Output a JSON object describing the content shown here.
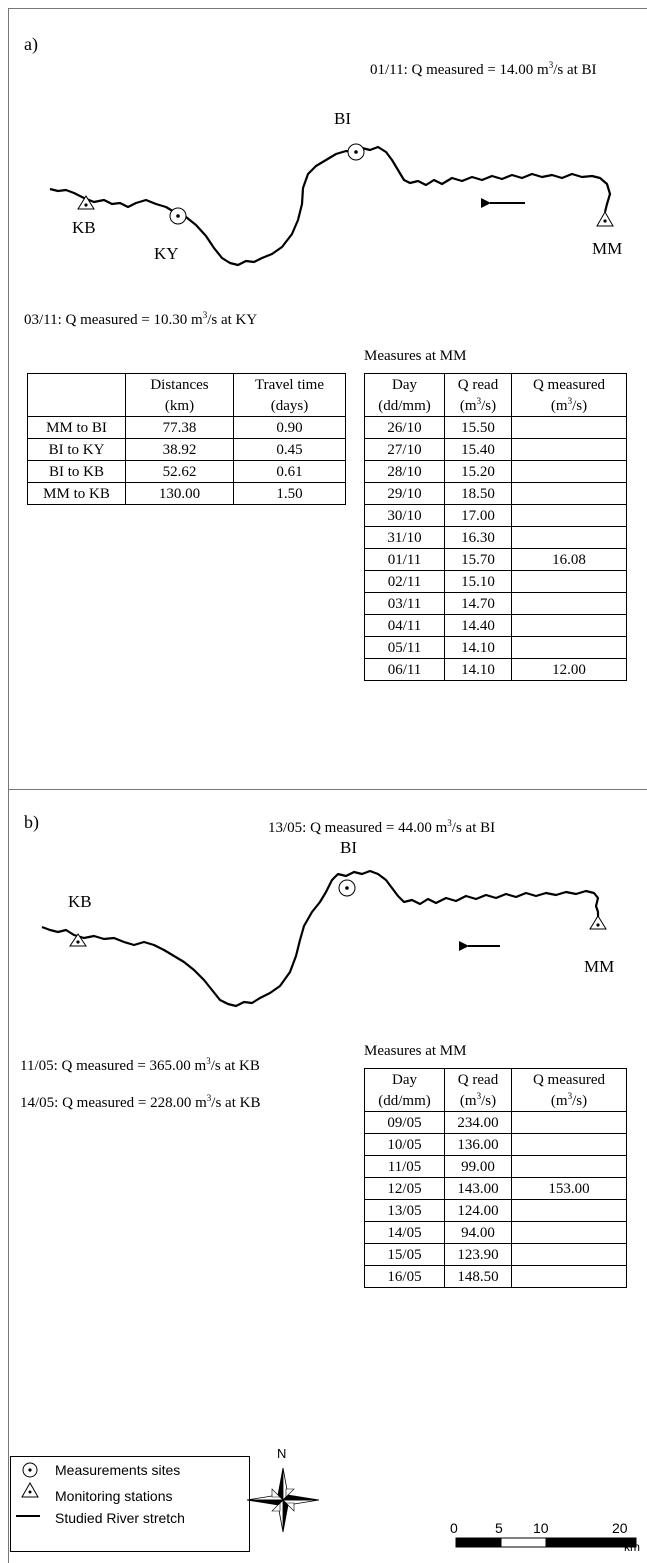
{
  "panel_a": {
    "label": "a)",
    "top_note": {
      "prefix": "01/11: Q measured = 14.00 m",
      "sup": "3",
      "suffix": "/s at BI"
    },
    "bottom_note": {
      "prefix": "03/11: Q measured = 10.30 m",
      "sup": "3",
      "suffix": "/s at KY"
    },
    "sites": {
      "BI": "BI",
      "KB": "KB",
      "KY": "KY",
      "MM": "MM"
    },
    "distance_table": {
      "headers": [
        "",
        "Distances",
        "Travel time"
      ],
      "units": [
        "",
        "(km)",
        "(days)"
      ],
      "rows": [
        [
          "MM to BI",
          "77.38",
          "0.90"
        ],
        [
          "BI to KY",
          "38.92",
          "0.45"
        ],
        [
          "BI to KB",
          "52.62",
          "0.61"
        ],
        [
          "MM to KB",
          "130.00",
          "1.50"
        ]
      ]
    },
    "measures_title": "Measures at MM",
    "measures_table": {
      "headers": [
        "Day",
        "Q read",
        "Q measured"
      ],
      "units": [
        "(dd/mm)",
        "(m3/s)",
        "(m3/s)"
      ],
      "rows": [
        [
          "26/10",
          "15.50",
          ""
        ],
        [
          "27/10",
          "15.40",
          ""
        ],
        [
          "28/10",
          "15.20",
          ""
        ],
        [
          "29/10",
          "18.50",
          ""
        ],
        [
          "30/10",
          "17.00",
          ""
        ],
        [
          "31/10",
          "16.30",
          ""
        ],
        [
          "01/11",
          "15.70",
          "16.08"
        ],
        [
          "02/11",
          "15.10",
          ""
        ],
        [
          "03/11",
          "14.70",
          ""
        ],
        [
          "04/11",
          "14.40",
          ""
        ],
        [
          "05/11",
          "14.10",
          ""
        ],
        [
          "06/11",
          "14.10",
          "12.00"
        ]
      ]
    }
  },
  "panel_b": {
    "label": "b)",
    "top_note": {
      "prefix": "13/05: Q measured = 44.00 m",
      "sup": "3",
      "suffix": "/s at BI"
    },
    "note_1": {
      "prefix": "11/05: Q measured = 365.00 m",
      "sup": "3",
      "suffix": "/s at KB"
    },
    "note_2": {
      "prefix": "14/05: Q measured = 228.00 m",
      "sup": "3",
      "suffix": "/s at KB"
    },
    "sites": {
      "BI": "BI",
      "KB": "KB",
      "MM": "MM"
    },
    "measures_title": "Measures at MM",
    "measures_table": {
      "headers": [
        "Day",
        "Q read",
        "Q measured"
      ],
      "units": [
        "(dd/mm)",
        "(m3/s)",
        "(m3/s)"
      ],
      "rows": [
        [
          "09/05",
          "234.00",
          ""
        ],
        [
          "10/05",
          "136.00",
          ""
        ],
        [
          "11/05",
          "99.00",
          ""
        ],
        [
          "12/05",
          "143.00",
          "153.00"
        ],
        [
          "13/05",
          "124.00",
          ""
        ],
        [
          "14/05",
          "94.00",
          ""
        ],
        [
          "15/05",
          "123.90",
          ""
        ],
        [
          "16/05",
          "148.50",
          ""
        ]
      ]
    }
  },
  "legend": {
    "items": [
      "Measurements sites",
      "Monitoring stations",
      "Studied River stretch"
    ]
  },
  "north_label": "N",
  "scale": {
    "ticks": [
      "0",
      "5",
      "10",
      "20"
    ],
    "unit": "km"
  }
}
